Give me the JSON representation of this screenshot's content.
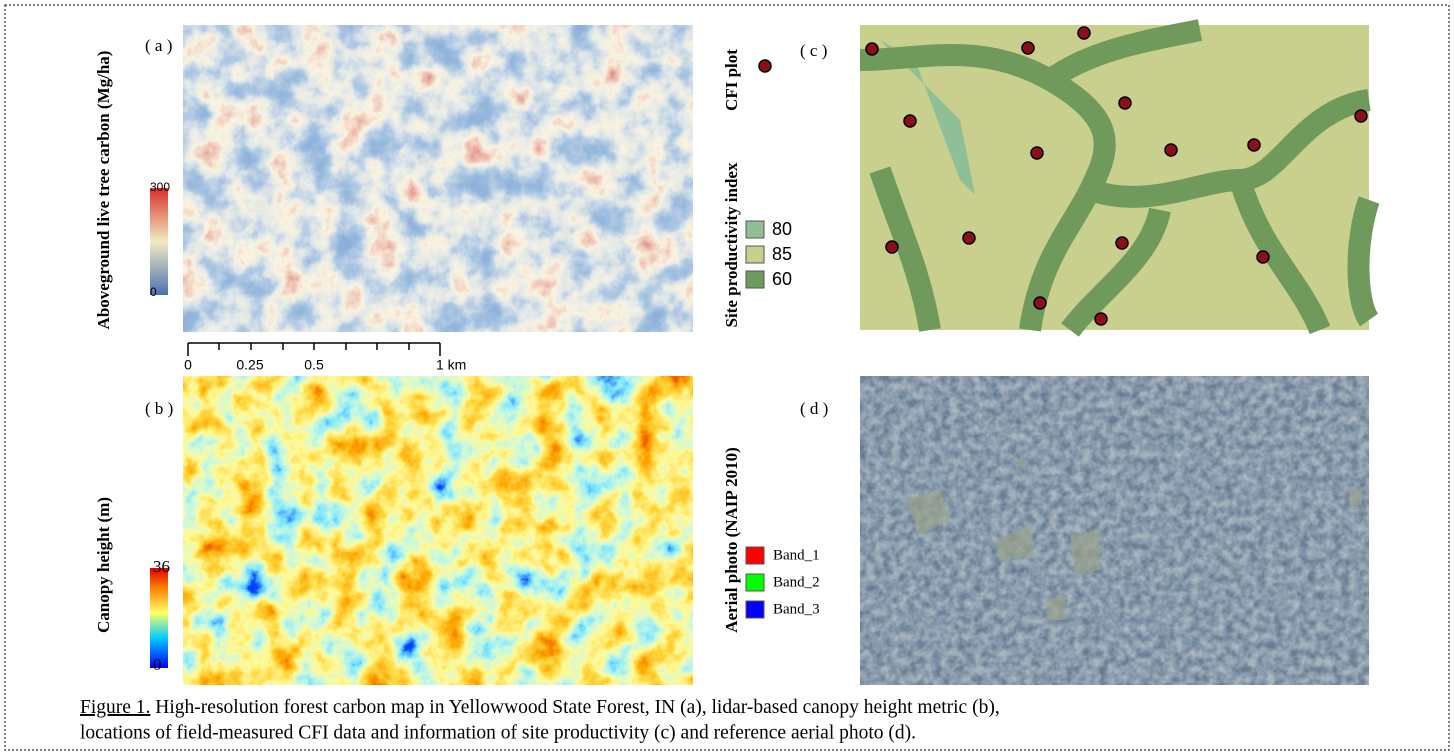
{
  "panels": [
    {
      "label": "( a )",
      "axis_label": "Aboveground live tree carbon (Mg/ha)",
      "colorbar_max": "300",
      "colorbar_min": "0"
    },
    {
      "label": "( b )",
      "axis_label": "Canopy height (m)",
      "colorbar_max": "36",
      "colorbar_min": "0"
    },
    {
      "label": "( c )",
      "point_legend": "CFI plot",
      "axis_label": "Site productivity index",
      "classes": [
        "80",
        "85",
        "60"
      ]
    },
    {
      "label": "( d )",
      "axis_label": "Aerial photo (NAIP 2010)",
      "bands": [
        "Band_1",
        "Band_2",
        "Band_3"
      ]
    }
  ],
  "scale_bar": [
    "0",
    "0.25",
    "0.5",
    "1 km"
  ],
  "caption": {
    "label": "Figure 1.",
    "lines": [
      "High-resolution forest carbon map in Yellowwood State Forest, IN (a), lidar-based canopy height metric (b),",
      "locations of field-measured CFI data and information of site productivity (c) and reference aerial photo (d)."
    ]
  }
}
